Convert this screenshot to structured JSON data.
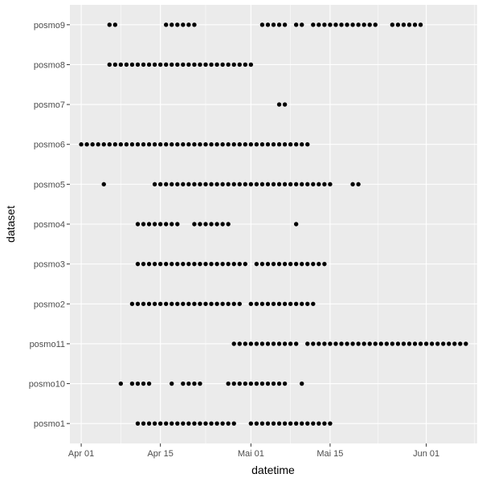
{
  "chart_data": {
    "type": "scatter",
    "xlabel": "datetime",
    "ylabel": "dataset",
    "x_ticks": [
      {
        "date": "2023-04-01",
        "label": "Apr 01"
      },
      {
        "date": "2023-04-15",
        "label": "Apr 15"
      },
      {
        "date": "2023-05-01",
        "label": "Mai 01"
      },
      {
        "date": "2023-05-15",
        "label": "Mai 15"
      },
      {
        "date": "2023-06-01",
        "label": "Jun 01"
      }
    ],
    "xlim": [
      "2023-03-30",
      "2023-06-10"
    ],
    "categories": [
      "posmo1",
      "posmo10",
      "posmo11",
      "posmo2",
      "posmo3",
      "posmo4",
      "posmo5",
      "posmo6",
      "posmo7",
      "posmo8",
      "posmo9"
    ],
    "grid": true,
    "legend": "none",
    "point_color": "#000000",
    "panel_background": "#ebebeb",
    "gridline_color": "#ffffff",
    "series": [
      {
        "category": "posmo1",
        "dates": [
          "2023-04-11",
          "2023-04-12",
          "2023-04-13",
          "2023-04-14",
          "2023-04-15",
          "2023-04-16",
          "2023-04-17",
          "2023-04-18",
          "2023-04-19",
          "2023-04-20",
          "2023-04-21",
          "2023-04-22",
          "2023-04-23",
          "2023-04-24",
          "2023-04-25",
          "2023-04-26",
          "2023-04-27",
          "2023-04-28",
          "2023-05-01",
          "2023-05-02",
          "2023-05-03",
          "2023-05-04",
          "2023-05-05",
          "2023-05-06",
          "2023-05-07",
          "2023-05-08",
          "2023-05-09",
          "2023-05-10",
          "2023-05-11",
          "2023-05-12",
          "2023-05-13",
          "2023-05-14",
          "2023-05-15"
        ]
      },
      {
        "category": "posmo10",
        "dates": [
          "2023-04-08",
          "2023-04-10",
          "2023-04-11",
          "2023-04-12",
          "2023-04-13",
          "2023-04-17",
          "2023-04-19",
          "2023-04-20",
          "2023-04-21",
          "2023-04-22",
          "2023-04-27",
          "2023-04-28",
          "2023-04-29",
          "2023-04-30",
          "2023-05-01",
          "2023-05-02",
          "2023-05-03",
          "2023-05-04",
          "2023-05-05",
          "2023-05-06",
          "2023-05-07",
          "2023-05-10"
        ]
      },
      {
        "category": "posmo11",
        "dates": [
          "2023-04-28",
          "2023-04-29",
          "2023-04-30",
          "2023-05-01",
          "2023-05-02",
          "2023-05-03",
          "2023-05-04",
          "2023-05-05",
          "2023-05-06",
          "2023-05-07",
          "2023-05-08",
          "2023-05-09",
          "2023-05-11",
          "2023-05-12",
          "2023-05-13",
          "2023-05-14",
          "2023-05-15",
          "2023-05-16",
          "2023-05-17",
          "2023-05-18",
          "2023-05-19",
          "2023-05-20",
          "2023-05-21",
          "2023-05-22",
          "2023-05-23",
          "2023-05-24",
          "2023-05-25",
          "2023-05-26",
          "2023-05-27",
          "2023-05-28",
          "2023-05-29",
          "2023-05-30",
          "2023-05-31",
          "2023-06-01",
          "2023-06-02",
          "2023-06-03",
          "2023-06-04",
          "2023-06-05",
          "2023-06-06",
          "2023-06-07",
          "2023-06-08"
        ]
      },
      {
        "category": "posmo2",
        "dates": [
          "2023-04-10",
          "2023-04-11",
          "2023-04-12",
          "2023-04-13",
          "2023-04-14",
          "2023-04-15",
          "2023-04-16",
          "2023-04-17",
          "2023-04-18",
          "2023-04-19",
          "2023-04-20",
          "2023-04-21",
          "2023-04-22",
          "2023-04-23",
          "2023-04-24",
          "2023-04-25",
          "2023-04-26",
          "2023-04-27",
          "2023-04-28",
          "2023-04-29",
          "2023-05-01",
          "2023-05-02",
          "2023-05-03",
          "2023-05-04",
          "2023-05-05",
          "2023-05-06",
          "2023-05-07",
          "2023-05-08",
          "2023-05-09",
          "2023-05-10",
          "2023-05-11",
          "2023-05-12"
        ]
      },
      {
        "category": "posmo3",
        "dates": [
          "2023-04-11",
          "2023-04-12",
          "2023-04-13",
          "2023-04-14",
          "2023-04-15",
          "2023-04-16",
          "2023-04-17",
          "2023-04-18",
          "2023-04-19",
          "2023-04-20",
          "2023-04-21",
          "2023-04-22",
          "2023-04-23",
          "2023-04-24",
          "2023-04-25",
          "2023-04-26",
          "2023-04-27",
          "2023-04-28",
          "2023-04-29",
          "2023-04-30",
          "2023-05-02",
          "2023-05-03",
          "2023-05-04",
          "2023-05-05",
          "2023-05-06",
          "2023-05-07",
          "2023-05-08",
          "2023-05-09",
          "2023-05-10",
          "2023-05-11",
          "2023-05-12",
          "2023-05-13",
          "2023-05-14"
        ]
      },
      {
        "category": "posmo4",
        "dates": [
          "2023-04-11",
          "2023-04-12",
          "2023-04-13",
          "2023-04-14",
          "2023-04-15",
          "2023-04-16",
          "2023-04-17",
          "2023-04-18",
          "2023-04-21",
          "2023-04-22",
          "2023-04-23",
          "2023-04-24",
          "2023-04-25",
          "2023-04-26",
          "2023-04-27",
          "2023-05-09"
        ]
      },
      {
        "category": "posmo5",
        "dates": [
          "2023-04-05",
          "2023-04-14",
          "2023-04-15",
          "2023-04-16",
          "2023-04-17",
          "2023-04-18",
          "2023-04-19",
          "2023-04-20",
          "2023-04-21",
          "2023-04-22",
          "2023-04-23",
          "2023-04-24",
          "2023-04-25",
          "2023-04-26",
          "2023-04-27",
          "2023-04-28",
          "2023-04-29",
          "2023-04-30",
          "2023-05-01",
          "2023-05-02",
          "2023-05-03",
          "2023-05-04",
          "2023-05-05",
          "2023-05-06",
          "2023-05-07",
          "2023-05-08",
          "2023-05-09",
          "2023-05-10",
          "2023-05-11",
          "2023-05-12",
          "2023-05-13",
          "2023-05-14",
          "2023-05-15",
          "2023-05-19",
          "2023-05-20"
        ]
      },
      {
        "category": "posmo6",
        "dates": [
          "2023-04-01",
          "2023-04-02",
          "2023-04-03",
          "2023-04-04",
          "2023-04-05",
          "2023-04-06",
          "2023-04-07",
          "2023-04-08",
          "2023-04-09",
          "2023-04-10",
          "2023-04-11",
          "2023-04-12",
          "2023-04-13",
          "2023-04-14",
          "2023-04-15",
          "2023-04-16",
          "2023-04-17",
          "2023-04-18",
          "2023-04-19",
          "2023-04-20",
          "2023-04-21",
          "2023-04-22",
          "2023-04-23",
          "2023-04-24",
          "2023-04-25",
          "2023-04-26",
          "2023-04-27",
          "2023-04-28",
          "2023-04-29",
          "2023-04-30",
          "2023-05-01",
          "2023-05-02",
          "2023-05-03",
          "2023-05-04",
          "2023-05-05",
          "2023-05-06",
          "2023-05-07",
          "2023-05-08",
          "2023-05-09",
          "2023-05-10",
          "2023-05-11"
        ]
      },
      {
        "category": "posmo7",
        "dates": [
          "2023-05-06",
          "2023-05-07"
        ]
      },
      {
        "category": "posmo8",
        "dates": [
          "2023-04-06",
          "2023-04-07",
          "2023-04-08",
          "2023-04-09",
          "2023-04-10",
          "2023-04-11",
          "2023-04-12",
          "2023-04-13",
          "2023-04-14",
          "2023-04-15",
          "2023-04-16",
          "2023-04-17",
          "2023-04-18",
          "2023-04-19",
          "2023-04-20",
          "2023-04-21",
          "2023-04-22",
          "2023-04-23",
          "2023-04-24",
          "2023-04-25",
          "2023-04-26",
          "2023-04-27",
          "2023-04-28",
          "2023-04-29",
          "2023-04-30",
          "2023-05-01"
        ]
      },
      {
        "category": "posmo9",
        "dates": [
          "2023-04-06",
          "2023-04-07",
          "2023-04-16",
          "2023-04-17",
          "2023-04-18",
          "2023-04-19",
          "2023-04-20",
          "2023-04-21",
          "2023-05-03",
          "2023-05-04",
          "2023-05-05",
          "2023-05-06",
          "2023-05-07",
          "2023-05-09",
          "2023-05-10",
          "2023-05-12",
          "2023-05-13",
          "2023-05-14",
          "2023-05-15",
          "2023-05-16",
          "2023-05-17",
          "2023-05-18",
          "2023-05-19",
          "2023-05-20",
          "2023-05-21",
          "2023-05-22",
          "2023-05-23",
          "2023-05-26",
          "2023-05-27",
          "2023-05-28",
          "2023-05-29",
          "2023-05-30",
          "2023-05-31"
        ]
      }
    ]
  }
}
